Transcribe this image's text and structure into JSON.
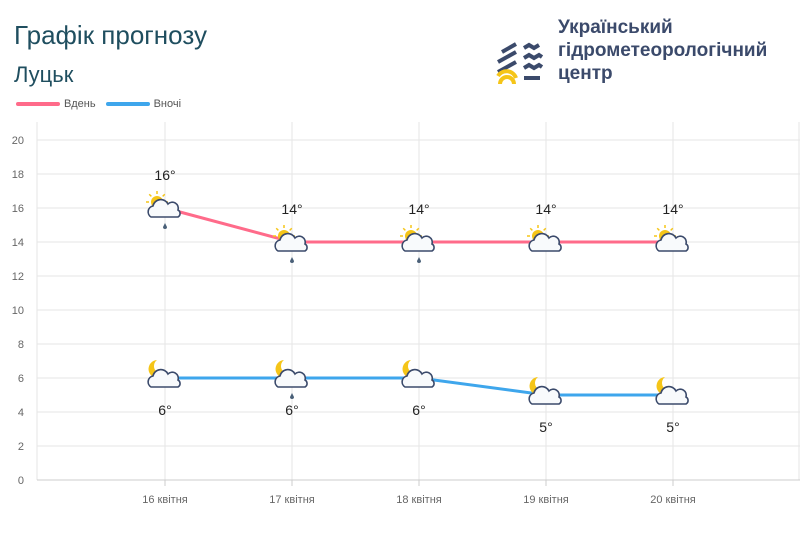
{
  "header": {
    "title": "Графік прогнозу",
    "city": "Луцьк"
  },
  "logo": {
    "text_lines": [
      "Український",
      "гідрометеорологічний",
      "центр"
    ]
  },
  "chart_data": {
    "type": "line",
    "categories": [
      "16 квітня",
      "17 квітня",
      "18 квітня",
      "19 квітня",
      "20 квітня"
    ],
    "series": [
      {
        "name": "Вдень",
        "color": "#ff6b8a",
        "values": [
          16,
          14,
          14,
          14,
          14
        ],
        "labels": [
          "16°",
          "14°",
          "14°",
          "14°",
          "14°"
        ],
        "icons": [
          "sun-cloud-rain",
          "sun-cloud-rain",
          "sun-cloud-rain",
          "sun-cloud",
          "sun-cloud"
        ]
      },
      {
        "name": "Вночі",
        "color": "#3ea6ec",
        "values": [
          6,
          6,
          6,
          5,
          5
        ],
        "labels": [
          "6°",
          "6°",
          "6°",
          "5°",
          "5°"
        ],
        "icons": [
          "moon-cloud",
          "moon-cloud-rain",
          "moon-cloud",
          "moon-cloud",
          "moon-cloud"
        ]
      }
    ],
    "yticks": [
      0,
      2,
      4,
      6,
      8,
      10,
      12,
      14,
      16,
      18,
      20
    ],
    "ylim": [
      0,
      20
    ],
    "grid": true,
    "legend": "top-left"
  }
}
